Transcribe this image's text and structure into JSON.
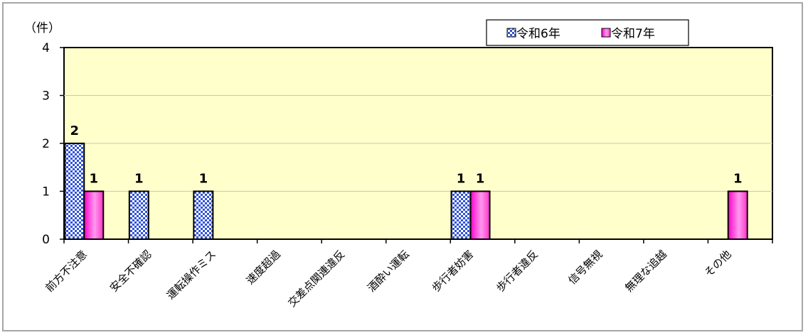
{
  "chart_data": {
    "type": "bar",
    "unit_label": "（件）",
    "categories": [
      "前方不注意",
      "安全不確認",
      "運転操作ミス",
      "速度超過",
      "交差点関連違反",
      "酒酔い運転",
      "歩行者妨害",
      "歩行者違反",
      "信号無視",
      "無理な追越",
      "その他"
    ],
    "series": [
      {
        "name": "令和6年",
        "values": [
          2,
          1,
          1,
          0,
          0,
          0,
          1,
          0,
          0,
          0,
          0
        ],
        "color": "#3b5bdb",
        "pattern": "checker"
      },
      {
        "name": "令和7年",
        "values": [
          1,
          0,
          0,
          0,
          0,
          0,
          1,
          0,
          0,
          0,
          1
        ],
        "color": "#ff33cc",
        "pattern": "gradient"
      }
    ],
    "ylim": [
      0,
      4
    ],
    "yticks": [
      "0",
      "1",
      "2",
      "3",
      "4"
    ],
    "grid": true,
    "legend_position": "top-right",
    "plot_background": "#ffffcc",
    "data_labels": true
  }
}
